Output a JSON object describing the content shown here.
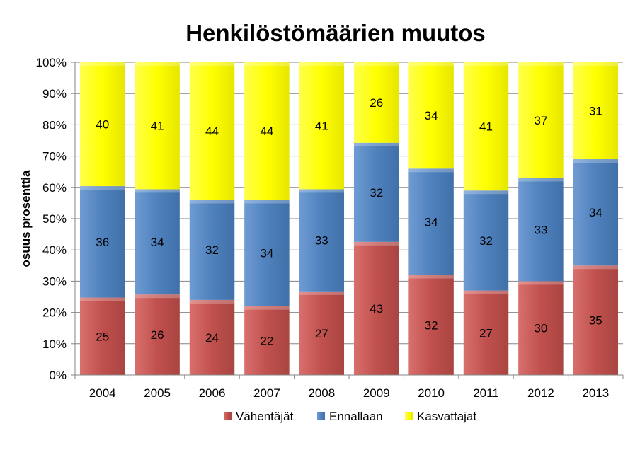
{
  "chart_data": {
    "type": "bar",
    "stacked": true,
    "title": "Henkilöstömäärien muutos",
    "xlabel": "",
    "ylabel": "osuus prosenttia",
    "ylim": [
      0,
      100
    ],
    "yticks": [
      "0%",
      "10%",
      "20%",
      "30%",
      "40%",
      "50%",
      "60%",
      "70%",
      "80%",
      "90%",
      "100%"
    ],
    "categories": [
      "2004",
      "2005",
      "2006",
      "2007",
      "2008",
      "2009",
      "2010",
      "2011",
      "2012",
      "2013"
    ],
    "series": [
      {
        "name": "Vähentäjät",
        "color": "#c0504d",
        "values": [
          25,
          26,
          24,
          22,
          27,
          43,
          32,
          27,
          30,
          35
        ]
      },
      {
        "name": "Ennallaan",
        "color": "#4f81bd",
        "values": [
          36,
          34,
          32,
          34,
          33,
          32,
          34,
          32,
          33,
          34
        ]
      },
      {
        "name": "Kasvattajat",
        "color": "#ffff00",
        "values": [
          40,
          41,
          44,
          44,
          41,
          26,
          34,
          41,
          37,
          31
        ]
      }
    ],
    "legend_position": "bottom",
    "grid": true
  }
}
